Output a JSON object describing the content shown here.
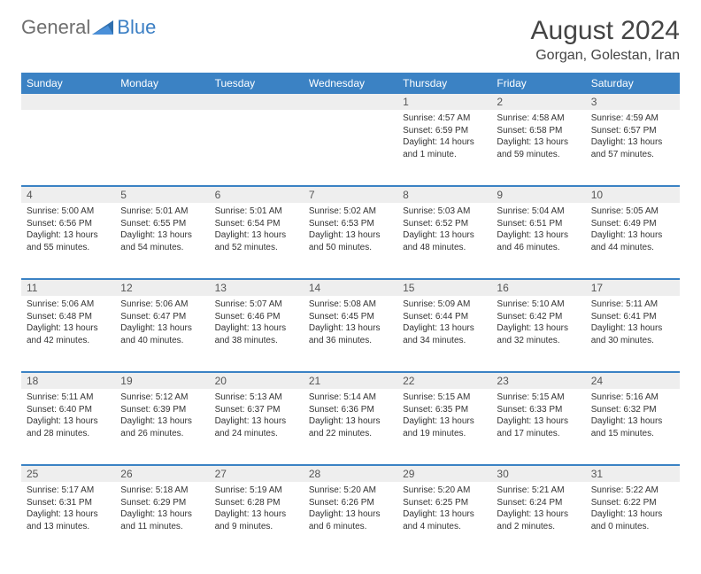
{
  "brand": {
    "part1": "General",
    "part2": "Blue"
  },
  "title": "August 2024",
  "location": "Gorgan, Golestan, Iran",
  "colors": {
    "header_bg": "#3b82c4",
    "header_text": "#ffffff",
    "daynum_bg": "#eeeeee",
    "row_divider": "#3b82c4",
    "body_text": "#333333",
    "logo_gray": "#6e6e6e",
    "logo_blue": "#3b7fc4",
    "page_bg": "#ffffff"
  },
  "typography": {
    "title_fontsize": 30,
    "location_fontsize": 16,
    "dayheader_fontsize": 12,
    "daynum_fontsize": 12,
    "cell_fontsize": 10
  },
  "days_of_week": [
    "Sunday",
    "Monday",
    "Tuesday",
    "Wednesday",
    "Thursday",
    "Friday",
    "Saturday"
  ],
  "weeks": [
    [
      null,
      null,
      null,
      null,
      {
        "n": "1",
        "sunrise": "Sunrise: 4:57 AM",
        "sunset": "Sunset: 6:59 PM",
        "daylight": "Daylight: 14 hours and 1 minute."
      },
      {
        "n": "2",
        "sunrise": "Sunrise: 4:58 AM",
        "sunset": "Sunset: 6:58 PM",
        "daylight": "Daylight: 13 hours and 59 minutes."
      },
      {
        "n": "3",
        "sunrise": "Sunrise: 4:59 AM",
        "sunset": "Sunset: 6:57 PM",
        "daylight": "Daylight: 13 hours and 57 minutes."
      }
    ],
    [
      {
        "n": "4",
        "sunrise": "Sunrise: 5:00 AM",
        "sunset": "Sunset: 6:56 PM",
        "daylight": "Daylight: 13 hours and 55 minutes."
      },
      {
        "n": "5",
        "sunrise": "Sunrise: 5:01 AM",
        "sunset": "Sunset: 6:55 PM",
        "daylight": "Daylight: 13 hours and 54 minutes."
      },
      {
        "n": "6",
        "sunrise": "Sunrise: 5:01 AM",
        "sunset": "Sunset: 6:54 PM",
        "daylight": "Daylight: 13 hours and 52 minutes."
      },
      {
        "n": "7",
        "sunrise": "Sunrise: 5:02 AM",
        "sunset": "Sunset: 6:53 PM",
        "daylight": "Daylight: 13 hours and 50 minutes."
      },
      {
        "n": "8",
        "sunrise": "Sunrise: 5:03 AM",
        "sunset": "Sunset: 6:52 PM",
        "daylight": "Daylight: 13 hours and 48 minutes."
      },
      {
        "n": "9",
        "sunrise": "Sunrise: 5:04 AM",
        "sunset": "Sunset: 6:51 PM",
        "daylight": "Daylight: 13 hours and 46 minutes."
      },
      {
        "n": "10",
        "sunrise": "Sunrise: 5:05 AM",
        "sunset": "Sunset: 6:49 PM",
        "daylight": "Daylight: 13 hours and 44 minutes."
      }
    ],
    [
      {
        "n": "11",
        "sunrise": "Sunrise: 5:06 AM",
        "sunset": "Sunset: 6:48 PM",
        "daylight": "Daylight: 13 hours and 42 minutes."
      },
      {
        "n": "12",
        "sunrise": "Sunrise: 5:06 AM",
        "sunset": "Sunset: 6:47 PM",
        "daylight": "Daylight: 13 hours and 40 minutes."
      },
      {
        "n": "13",
        "sunrise": "Sunrise: 5:07 AM",
        "sunset": "Sunset: 6:46 PM",
        "daylight": "Daylight: 13 hours and 38 minutes."
      },
      {
        "n": "14",
        "sunrise": "Sunrise: 5:08 AM",
        "sunset": "Sunset: 6:45 PM",
        "daylight": "Daylight: 13 hours and 36 minutes."
      },
      {
        "n": "15",
        "sunrise": "Sunrise: 5:09 AM",
        "sunset": "Sunset: 6:44 PM",
        "daylight": "Daylight: 13 hours and 34 minutes."
      },
      {
        "n": "16",
        "sunrise": "Sunrise: 5:10 AM",
        "sunset": "Sunset: 6:42 PM",
        "daylight": "Daylight: 13 hours and 32 minutes."
      },
      {
        "n": "17",
        "sunrise": "Sunrise: 5:11 AM",
        "sunset": "Sunset: 6:41 PM",
        "daylight": "Daylight: 13 hours and 30 minutes."
      }
    ],
    [
      {
        "n": "18",
        "sunrise": "Sunrise: 5:11 AM",
        "sunset": "Sunset: 6:40 PM",
        "daylight": "Daylight: 13 hours and 28 minutes."
      },
      {
        "n": "19",
        "sunrise": "Sunrise: 5:12 AM",
        "sunset": "Sunset: 6:39 PM",
        "daylight": "Daylight: 13 hours and 26 minutes."
      },
      {
        "n": "20",
        "sunrise": "Sunrise: 5:13 AM",
        "sunset": "Sunset: 6:37 PM",
        "daylight": "Daylight: 13 hours and 24 minutes."
      },
      {
        "n": "21",
        "sunrise": "Sunrise: 5:14 AM",
        "sunset": "Sunset: 6:36 PM",
        "daylight": "Daylight: 13 hours and 22 minutes."
      },
      {
        "n": "22",
        "sunrise": "Sunrise: 5:15 AM",
        "sunset": "Sunset: 6:35 PM",
        "daylight": "Daylight: 13 hours and 19 minutes."
      },
      {
        "n": "23",
        "sunrise": "Sunrise: 5:15 AM",
        "sunset": "Sunset: 6:33 PM",
        "daylight": "Daylight: 13 hours and 17 minutes."
      },
      {
        "n": "24",
        "sunrise": "Sunrise: 5:16 AM",
        "sunset": "Sunset: 6:32 PM",
        "daylight": "Daylight: 13 hours and 15 minutes."
      }
    ],
    [
      {
        "n": "25",
        "sunrise": "Sunrise: 5:17 AM",
        "sunset": "Sunset: 6:31 PM",
        "daylight": "Daylight: 13 hours and 13 minutes."
      },
      {
        "n": "26",
        "sunrise": "Sunrise: 5:18 AM",
        "sunset": "Sunset: 6:29 PM",
        "daylight": "Daylight: 13 hours and 11 minutes."
      },
      {
        "n": "27",
        "sunrise": "Sunrise: 5:19 AM",
        "sunset": "Sunset: 6:28 PM",
        "daylight": "Daylight: 13 hours and 9 minutes."
      },
      {
        "n": "28",
        "sunrise": "Sunrise: 5:20 AM",
        "sunset": "Sunset: 6:26 PM",
        "daylight": "Daylight: 13 hours and 6 minutes."
      },
      {
        "n": "29",
        "sunrise": "Sunrise: 5:20 AM",
        "sunset": "Sunset: 6:25 PM",
        "daylight": "Daylight: 13 hours and 4 minutes."
      },
      {
        "n": "30",
        "sunrise": "Sunrise: 5:21 AM",
        "sunset": "Sunset: 6:24 PM",
        "daylight": "Daylight: 13 hours and 2 minutes."
      },
      {
        "n": "31",
        "sunrise": "Sunrise: 5:22 AM",
        "sunset": "Sunset: 6:22 PM",
        "daylight": "Daylight: 13 hours and 0 minutes."
      }
    ]
  ]
}
